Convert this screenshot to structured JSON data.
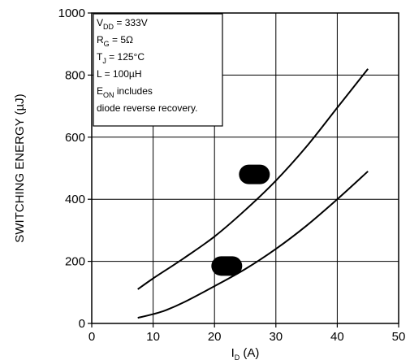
{
  "chart_data": {
    "type": "line",
    "xlim": [
      0,
      50
    ],
    "ylim": [
      0,
      1000
    ],
    "x_ticks": [
      0,
      10,
      20,
      30,
      40,
      50
    ],
    "y_ticks": [
      0,
      200,
      400,
      600,
      800,
      1000
    ],
    "grid": true,
    "xlabel": {
      "main": "I",
      "sub": "D",
      "rest": " (A)"
    },
    "ylabel": "SWITCHING ENERGY (µJ)",
    "legend_box": {
      "placement": "top-left",
      "lines": [
        {
          "main": "V",
          "sub": "DD",
          "rest": " = 333V"
        },
        {
          "main": "R",
          "sub": "G",
          "rest": " = 5Ω"
        },
        {
          "main": "T",
          "sub": "J",
          "rest": " = 125°C"
        },
        {
          "main": "L",
          "sub": "",
          "rest": " = 100µH"
        },
        {
          "main": "E",
          "sub": "ON",
          "rest": " includes"
        },
        {
          "main": "diode reverse recovery.",
          "sub": "",
          "rest": ""
        }
      ]
    },
    "series": [
      {
        "x": [
          7.5,
          10,
          15,
          20,
          25,
          30,
          35,
          40,
          45
        ],
        "y": [
          110,
          145,
          210,
          280,
          365,
          460,
          570,
          695,
          820
        ]
      },
      {
        "x": [
          7.5,
          10,
          12,
          15,
          20,
          25,
          30,
          35,
          40,
          45
        ],
        "y": [
          18,
          30,
          42,
          68,
          120,
          175,
          240,
          315,
          400,
          490
        ]
      }
    ],
    "markers": [
      {
        "x": 26.5,
        "y": 480
      },
      {
        "x": 22.0,
        "y": 185
      }
    ]
  }
}
